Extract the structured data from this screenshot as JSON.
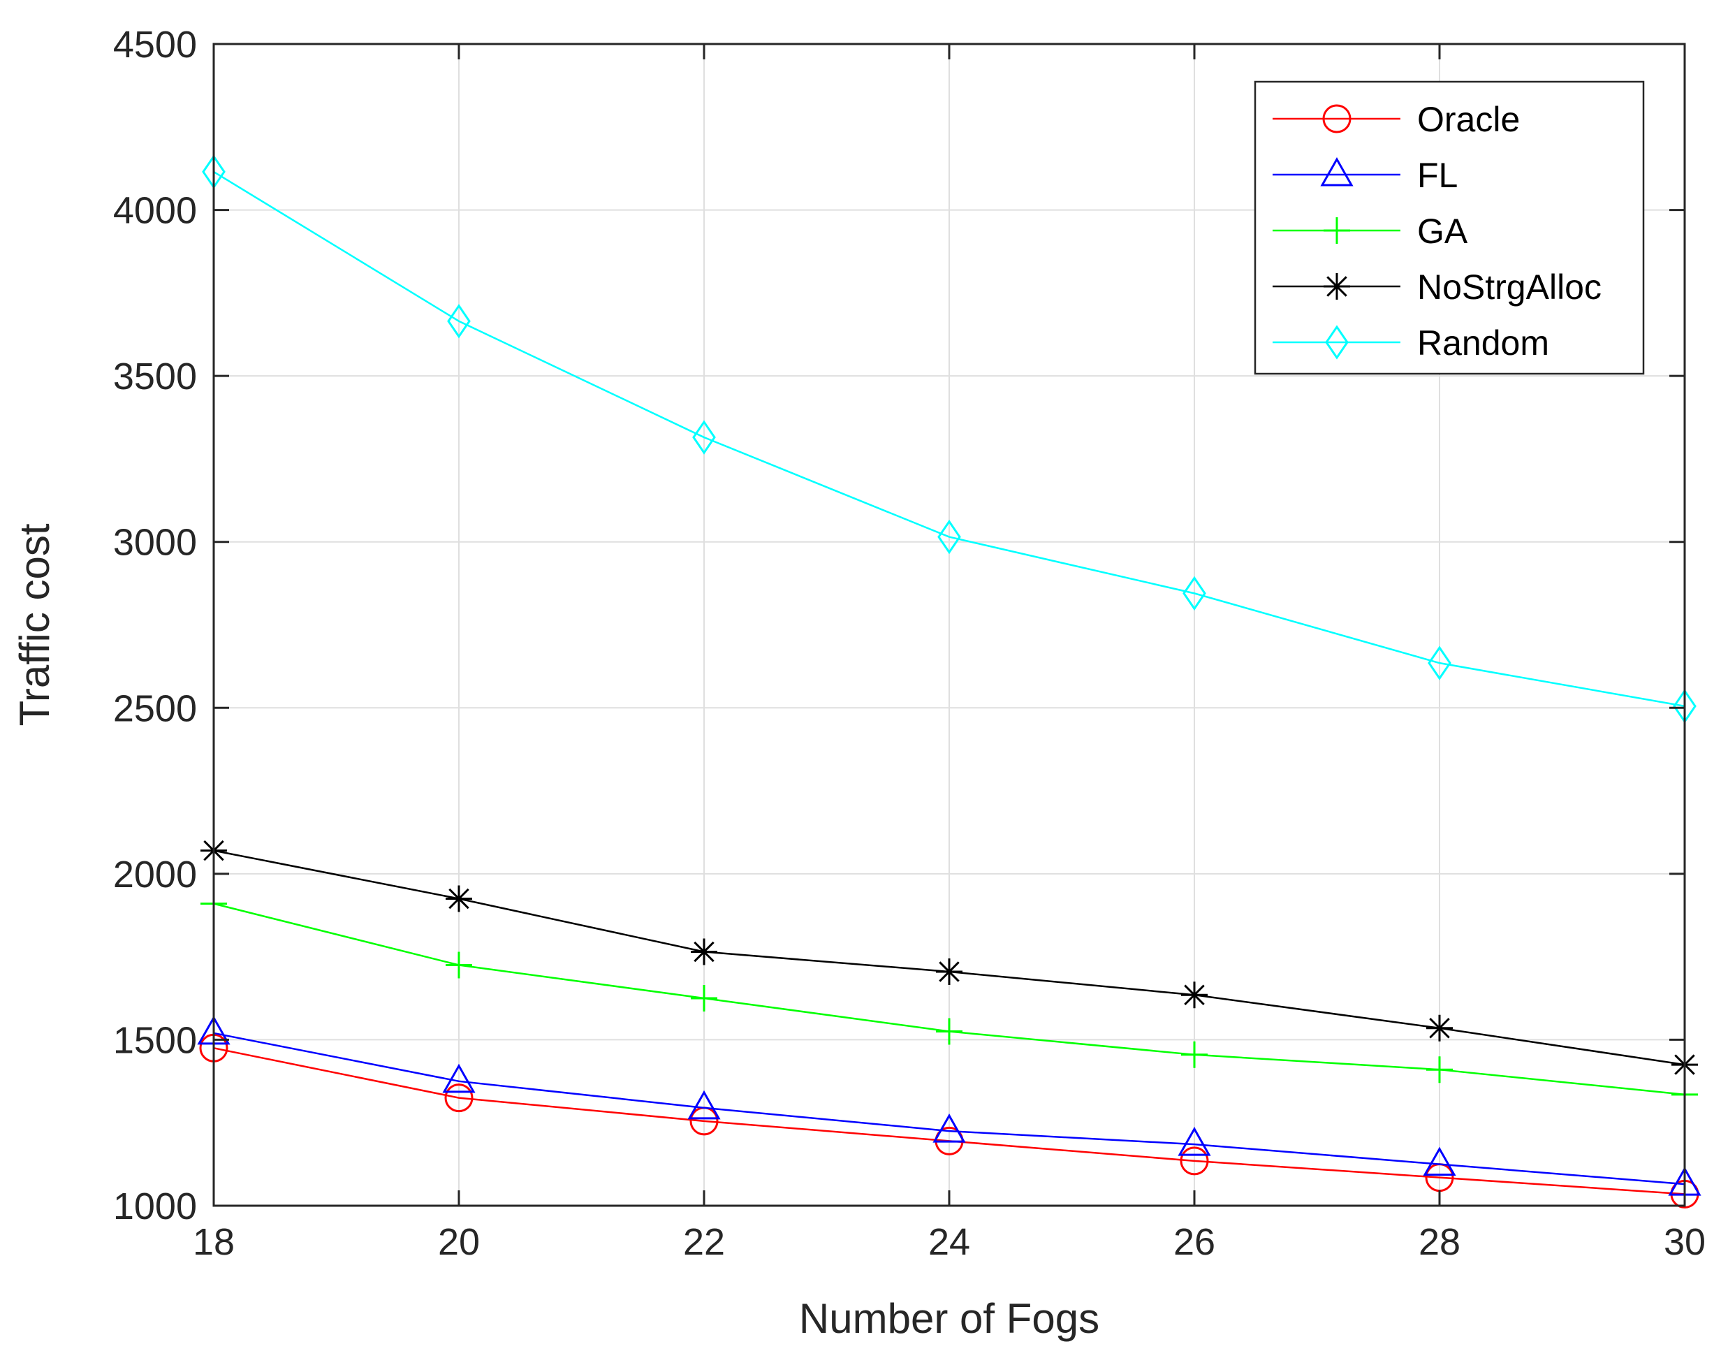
{
  "chart_data": {
    "type": "line",
    "title": "",
    "xlabel": "Number of Fogs",
    "ylabel": "Traffic cost",
    "x": [
      18,
      20,
      22,
      24,
      26,
      28,
      30
    ],
    "xlim": [
      18,
      30
    ],
    "ylim": [
      1000,
      4500
    ],
    "xticks": [
      "18",
      "20",
      "22",
      "24",
      "26",
      "28",
      "30"
    ],
    "yticks": [
      "1000",
      "1500",
      "2000",
      "2500",
      "3000",
      "3500",
      "4000",
      "4500"
    ],
    "grid": true,
    "legend_position": "top-right",
    "series": [
      {
        "name": "Oracle",
        "color": "#ff0000",
        "marker": "circle",
        "values": [
          1475,
          1325,
          1255,
          1195,
          1135,
          1085,
          1035
        ]
      },
      {
        "name": "FL",
        "color": "#0000ff",
        "marker": "triangle",
        "values": [
          1520,
          1375,
          1295,
          1225,
          1185,
          1125,
          1065
        ]
      },
      {
        "name": "GA",
        "color": "#00ff00",
        "marker": "plus",
        "values": [
          1910,
          1725,
          1625,
          1525,
          1455,
          1410,
          1335
        ]
      },
      {
        "name": "NoStrgAlloc",
        "color": "#000000",
        "marker": "asterisk",
        "values": [
          2070,
          1925,
          1765,
          1705,
          1635,
          1535,
          1425
        ]
      },
      {
        "name": "Random",
        "color": "#00ffff",
        "marker": "diamond",
        "values": [
          4115,
          3665,
          3315,
          3015,
          2845,
          2635,
          2505
        ]
      }
    ]
  }
}
